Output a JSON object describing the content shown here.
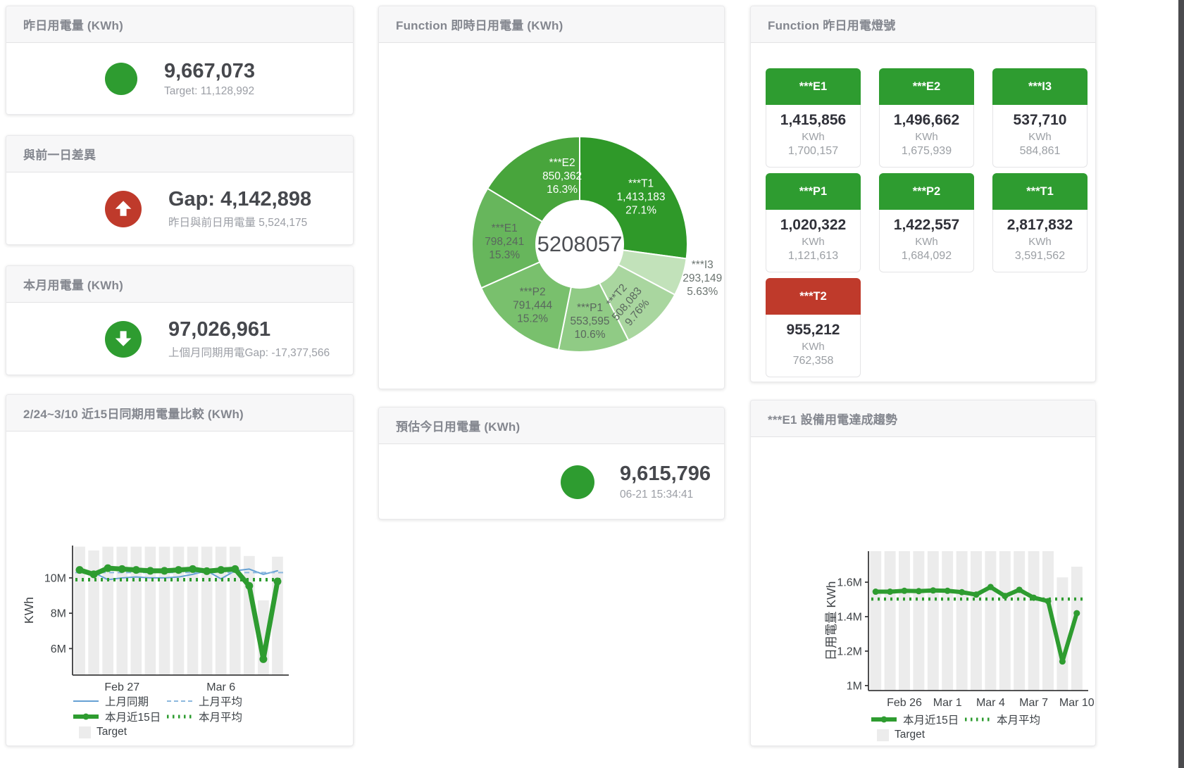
{
  "colors": {
    "green": "#2e9c30",
    "red": "#bf3a2b",
    "blue": "#66a1d4",
    "blue_light": "#8cb8de",
    "bar": "#ececec"
  },
  "cards": {
    "yesterday": {
      "title": "昨日用電量 (KWh)",
      "value": "9,667,073",
      "subtitle": "Target: 11,128,992"
    },
    "gap": {
      "title": "與前一日差異",
      "value": "Gap: 4,142,898",
      "subtitle": "昨日與前日用電量 5,524,175"
    },
    "month": {
      "title": "本月用電量 (KWh)",
      "value": "97,026,961",
      "subtitle": "上個月同期用電Gap: -17,377,566"
    },
    "estimate": {
      "title": "預估今日用電量 (KWh)",
      "value": "9,615,796",
      "subtitle": "06-21 15:34:41"
    },
    "lights": {
      "title": "Function 昨日用電燈號",
      "unit": "KWh",
      "tiles": [
        {
          "label": "***E1",
          "value": "1,415,856",
          "unit": "KWh",
          "target": "1,700,157",
          "status": "green"
        },
        {
          "label": "***E2",
          "value": "1,496,662",
          "unit": "KWh",
          "target": "1,675,939",
          "status": "green"
        },
        {
          "label": "***I3",
          "value": "537,710",
          "unit": "KWh",
          "target": "584,861",
          "status": "green"
        },
        {
          "label": "***P1",
          "value": "1,020,322",
          "unit": "KWh",
          "target": "1,121,613",
          "status": "green"
        },
        {
          "label": "***P2",
          "value": "1,422,557",
          "unit": "KWh",
          "target": "1,684,092",
          "status": "green"
        },
        {
          "label": "***T1",
          "value": "2,817,832",
          "unit": "KWh",
          "target": "3,591,562",
          "status": "green"
        },
        {
          "label": "***T2",
          "value": "955,212",
          "unit": "KWh",
          "target": "762,358",
          "status": "red"
        }
      ]
    }
  },
  "chart_data": [
    {
      "id": "donut",
      "type": "pie",
      "title": "Function 即時日用電量 (KWh)",
      "center_label": "5208057",
      "slices": [
        {
          "name": "***T1",
          "value": 1413183,
          "value_label": "1,413,183",
          "pct_label": "27.1%",
          "color": "#2f9929",
          "text": "#ffffff",
          "label_angle": 51,
          "label_r": 112
        },
        {
          "name": "***I3",
          "value": 293149,
          "value_label": "293,149",
          "pct_label": "5.63%",
          "color": "#c2e2ba",
          "text": "#6b7470",
          "label_angle": 104.5,
          "label_r": 180,
          "outside": true
        },
        {
          "name": "***T2",
          "value": 508083,
          "value_label": "508,083",
          "pct_label": "9.76%",
          "color": "#a9d69f",
          "text": "#5a675e",
          "label_angle": 142,
          "label_r": 105,
          "label_rotate": -50
        },
        {
          "name": "***P1",
          "value": 553595,
          "value_label": "553,595",
          "pct_label": "10.6%",
          "color": "#90cb85",
          "text": "#5a675e"
        },
        {
          "name": "***P2",
          "value": 791444,
          "value_label": "791,444",
          "pct_label": "15.2%",
          "color": "#79c06d",
          "text": "#5a675e"
        },
        {
          "name": "***E1",
          "value": 798241,
          "value_label": "798,241",
          "pct_label": "15.3%",
          "color": "#67b65c",
          "text": "#5a675e"
        },
        {
          "name": "***E2",
          "value": 850362,
          "value_label": "850,362",
          "pct_label": "16.3%",
          "color": "#48a53c",
          "text": "#ffffff",
          "label_angle": 346,
          "label_r": 103
        }
      ]
    },
    {
      "id": "compare",
      "type": "bar+line",
      "title": "2/24~3/10 近15日同期用電量比較 (KWh)",
      "ylabel": "KWh",
      "ylim": [
        4.5,
        11.83
      ],
      "yticks": [
        {
          "v": 6,
          "label": "6M"
        },
        {
          "v": 8,
          "label": "8M"
        },
        {
          "v": 10,
          "label": "10M"
        }
      ],
      "n": 15,
      "xticks": [
        {
          "i": 3,
          "label": "Feb 27"
        },
        {
          "i": 10,
          "label": "Mar 6"
        }
      ],
      "bar_label": "Target",
      "bar_color": "#ececec",
      "target_bars": [
        11.77,
        11.55,
        11.77,
        11.77,
        11.77,
        11.77,
        11.77,
        11.77,
        11.77,
        11.77,
        11.77,
        11.77,
        11.24,
        8.73,
        11.2
      ],
      "lines": [
        {
          "name": "上月同期",
          "color": "#66a1d4",
          "width": 2,
          "values": [
            10.5,
            10.3,
            9.9,
            10.0,
            10.05,
            10.0,
            10.0,
            10.05,
            10.2,
            10.4,
            9.95,
            10.4,
            10.5,
            10.2,
            10.4
          ]
        },
        {
          "name": "上月平均",
          "color": "#8cb8de",
          "width": 2,
          "dash": "7 5",
          "const": 10.3
        },
        {
          "name": "本月平均",
          "color": "#2e9c30",
          "width": 5,
          "dash": "3 6",
          "const": 9.9
        },
        {
          "name": "本月近15日",
          "color": "#2e9c30",
          "width": 7,
          "marker": 5.5,
          "values": [
            10.45,
            10.2,
            10.55,
            10.5,
            10.45,
            10.4,
            10.4,
            10.45,
            10.5,
            10.38,
            10.45,
            10.5,
            9.55,
            5.4,
            9.8
          ]
        }
      ],
      "legend": [
        [
          {
            "label": "上月同期",
            "type": "line",
            "color": "#66a1d4",
            "width": 2
          },
          {
            "label": "上月平均",
            "type": "line",
            "color": "#8cb8de",
            "width": 2,
            "dash": "6 4"
          }
        ],
        [
          {
            "label": "本月近15日",
            "type": "line",
            "color": "#2e9c30",
            "width": 6,
            "marker": true
          },
          {
            "label": "本月平均",
            "type": "line",
            "color": "#2e9c30",
            "width": 5,
            "dash": "2.5 5.5"
          }
        ],
        [
          {
            "label": "Target",
            "type": "box",
            "color": "#ececec"
          }
        ]
      ]
    },
    {
      "id": "trend",
      "type": "bar+line",
      "title": "***E1 設備用電達成趨勢",
      "ylabel": "日用電量 KWh",
      "ylim": [
        0.971,
        1.78
      ],
      "yticks": [
        {
          "v": 1,
          "label": "1M"
        },
        {
          "v": 1.2,
          "label": "1.2M"
        },
        {
          "v": 1.4,
          "label": "1.4M"
        },
        {
          "v": 1.6,
          "label": "1.6M"
        }
      ],
      "n": 15,
      "xticks": [
        {
          "i": 2,
          "label": "Feb 26"
        },
        {
          "i": 5,
          "label": "Mar 1"
        },
        {
          "i": 8,
          "label": "Mar 4"
        },
        {
          "i": 11,
          "label": "Mar 7"
        },
        {
          "i": 14,
          "label": "Mar 10"
        }
      ],
      "bar_label": "Target",
      "bar_color": "#ececec",
      "target_bars": [
        1.78,
        1.78,
        1.78,
        1.78,
        1.78,
        1.78,
        1.78,
        1.78,
        1.78,
        1.78,
        1.78,
        1.78,
        1.78,
        1.628,
        1.69
      ],
      "lines": [
        {
          "name": "本月平均",
          "color": "#2e9c30",
          "width": 4.5,
          "dash": "3 6",
          "const": 1.502
        },
        {
          "name": "本月近15日",
          "color": "#2e9c30",
          "width": 6,
          "marker": 4.5,
          "values": [
            1.545,
            1.545,
            1.55,
            1.548,
            1.552,
            1.55,
            1.542,
            1.528,
            1.572,
            1.52,
            1.556,
            1.51,
            1.49,
            1.14,
            1.42
          ]
        }
      ],
      "legend": [
        [
          {
            "label": "本月近15日",
            "type": "line",
            "color": "#2e9c30",
            "width": 6,
            "marker": true
          },
          {
            "label": "本月平均",
            "type": "line",
            "color": "#2e9c30",
            "width": 5,
            "dash": "2.5 5.5"
          }
        ],
        [
          {
            "label": "Target",
            "type": "box",
            "color": "#ececec"
          }
        ]
      ]
    }
  ]
}
